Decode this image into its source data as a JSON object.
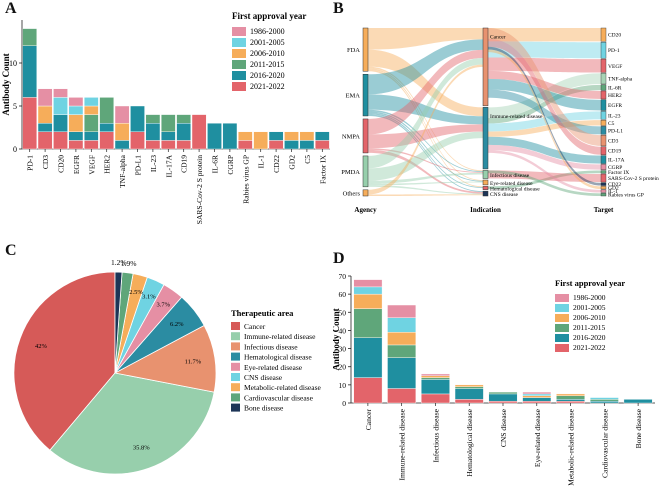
{
  "colors": {
    "y1986_2000": "#e58fa4",
    "y2001_2005": "#6fd3e2",
    "y2006_2010": "#f6ad5a",
    "y2011_2015": "#5fa67a",
    "y2016_2020": "#1f8fa0",
    "y2021_2022": "#e3646a"
  },
  "panel_labels": {
    "a": "A",
    "b": "B",
    "c": "C",
    "d": "D"
  },
  "chart_data": [
    {
      "id": "A",
      "type": "bar",
      "stacked": true,
      "ylabel": "Antibody Count",
      "xlabel": "",
      "ylim": [
        0,
        15
      ],
      "yticks": [
        0,
        5,
        10
      ],
      "legend_title": "First approval year",
      "legend_position": "top-right",
      "categories": [
        "PD-1",
        "CD3",
        "CD20",
        "EGFR",
        "VEGF",
        "HER2",
        "TNF-alpha",
        "PD-L1",
        "IL-23",
        "IL-17A",
        "CD19",
        "SARS-Cov-2 S protein",
        "IL-6R",
        "CGRP",
        "Rabies virus GP",
        "IL-1",
        "CD22",
        "GD2",
        "C5",
        "Factor IX"
      ],
      "series": [
        {
          "name": "1986-2000",
          "color_key": "y1986_2000",
          "values": [
            0,
            2,
            1,
            1,
            0,
            0,
            2,
            0,
            0,
            0,
            0,
            0,
            0,
            0,
            0,
            0,
            0,
            0,
            0,
            0
          ]
        },
        {
          "name": "2001-2005",
          "color_key": "y2001_2005",
          "values": [
            0,
            0,
            2,
            1,
            1,
            0,
            0,
            0,
            0,
            0,
            0,
            0,
            0,
            0,
            0,
            0,
            0,
            0,
            0,
            0
          ]
        },
        {
          "name": "2006-2010",
          "color_key": "y2006_2010",
          "values": [
            0,
            2,
            0,
            2,
            1,
            0,
            2,
            0,
            0,
            0,
            0,
            0,
            0,
            0,
            1,
            2,
            0,
            1,
            1,
            0
          ]
        },
        {
          "name": "2011-2015",
          "color_key": "y2011_2015",
          "values": [
            2,
            0,
            0,
            0,
            2,
            3,
            0,
            0,
            1,
            2,
            1,
            0,
            0,
            0,
            0,
            0,
            0,
            0,
            0,
            0
          ]
        },
        {
          "name": "2016-2020",
          "color_key": "y2016_2020",
          "values": [
            6,
            1,
            2,
            1,
            1,
            1,
            1,
            3,
            2,
            1,
            2,
            0,
            3,
            3,
            0,
            0,
            1,
            1,
            1,
            1
          ]
        },
        {
          "name": "2021-2022",
          "color_key": "y2021_2022",
          "values": [
            6,
            2,
            2,
            1,
            1,
            2,
            0,
            2,
            1,
            1,
            1,
            4,
            0,
            0,
            1,
            0,
            1,
            0,
            0,
            1
          ]
        }
      ]
    },
    {
      "id": "B",
      "type": "sankey",
      "axis_labels": [
        "Agency",
        "Indication",
        "Target"
      ],
      "agency": [
        "FDA",
        "EMA",
        "NMPA",
        "PMDA",
        "Others"
      ],
      "indication": [
        "Cancer",
        "Immune-related disease",
        "Infectious disease",
        "Eye-related disease",
        "Hematological disease",
        "CNS disease"
      ],
      "target": [
        "CD20",
        "PD-1",
        "VEGF",
        "TNF-alpha",
        "IL-6R",
        "HER2",
        "EGFR",
        "IL-23",
        "C5",
        "PD-L1",
        "CD3",
        "CD19",
        "IL-17A",
        "CGRP",
        "Factor IX",
        "SARS-Cov-2 S protein",
        "CD22",
        "GD2",
        "IL-1",
        "Rabies virus GP"
      ],
      "agency_counts": [
        28,
        27,
        22,
        20,
        4
      ],
      "indication_counts": [
        48,
        38,
        5,
        3,
        2,
        3
      ],
      "target_counts": [
        5,
        6,
        5,
        4,
        2,
        3,
        4,
        3,
        2,
        3,
        4,
        3,
        3,
        2,
        1,
        3,
        1,
        1,
        1,
        1
      ]
    },
    {
      "id": "C",
      "type": "pie",
      "legend_title": "Therapeutic area",
      "legend_position": "right",
      "categories": [
        "Cancer",
        "Immune-related disease",
        "Infectious disease",
        "Hematological disease",
        "Eye-related disease",
        "CNS disease",
        "Metabolic-related disease",
        "Cardiovascular disease",
        "Bone disease"
      ],
      "values": [
        42,
        35.8,
        11.7,
        6.2,
        3.7,
        3.1,
        2.5,
        1.9,
        1.2
      ],
      "labels": [
        "42%",
        "35.8%",
        "11.7%",
        "6.2%",
        "3.7%",
        "3.1%",
        "2.5%",
        "1.9%",
        "1.2%"
      ],
      "colors": [
        "#d65a58",
        "#97cfac",
        "#e8926f",
        "#2b8ca2",
        "#e58fa4",
        "#6fd3e2",
        "#f6ad5a",
        "#5fa67a",
        "#1d3557"
      ]
    },
    {
      "id": "D",
      "type": "bar",
      "stacked": true,
      "ylabel": "Antibody Count",
      "xlabel": "",
      "ylim": [
        0,
        70
      ],
      "yticks": [
        0,
        10,
        20,
        30,
        40,
        50,
        60,
        70
      ],
      "legend_title": "First approval year",
      "legend_position": "top-right",
      "categories": [
        "Cancer",
        "Immune-related disease",
        "Infectious disease",
        "Hematological disease",
        "CNS disease",
        "Eye-related disease",
        "Metabolic-related disease",
        "Cardiovascular disease",
        "Bone disease"
      ],
      "series": [
        {
          "name": "1986-2000",
          "color_key": "y1986_2000",
          "values": [
            4,
            7,
            1,
            0,
            0,
            1,
            0,
            0,
            0
          ]
        },
        {
          "name": "2001-2005",
          "color_key": "y2001_2005",
          "values": [
            4,
            8,
            0,
            0,
            0,
            1,
            0,
            1,
            0
          ]
        },
        {
          "name": "2006-2010",
          "color_key": "y2006_2010",
          "values": [
            8,
            7,
            1,
            1,
            0,
            1,
            1,
            0,
            0
          ]
        },
        {
          "name": "2011-2015",
          "color_key": "y2011_2015",
          "values": [
            16,
            7,
            1,
            1,
            1,
            0,
            2,
            1,
            0
          ]
        },
        {
          "name": "2016-2020",
          "color_key": "y2016_2020",
          "values": [
            22,
            17,
            8,
            6,
            4,
            2,
            1,
            1,
            2
          ]
        },
        {
          "name": "2021-2022",
          "color_key": "y2021_2022",
          "values": [
            14,
            8,
            5,
            2,
            1,
            1,
            1,
            0,
            0
          ]
        }
      ]
    }
  ]
}
